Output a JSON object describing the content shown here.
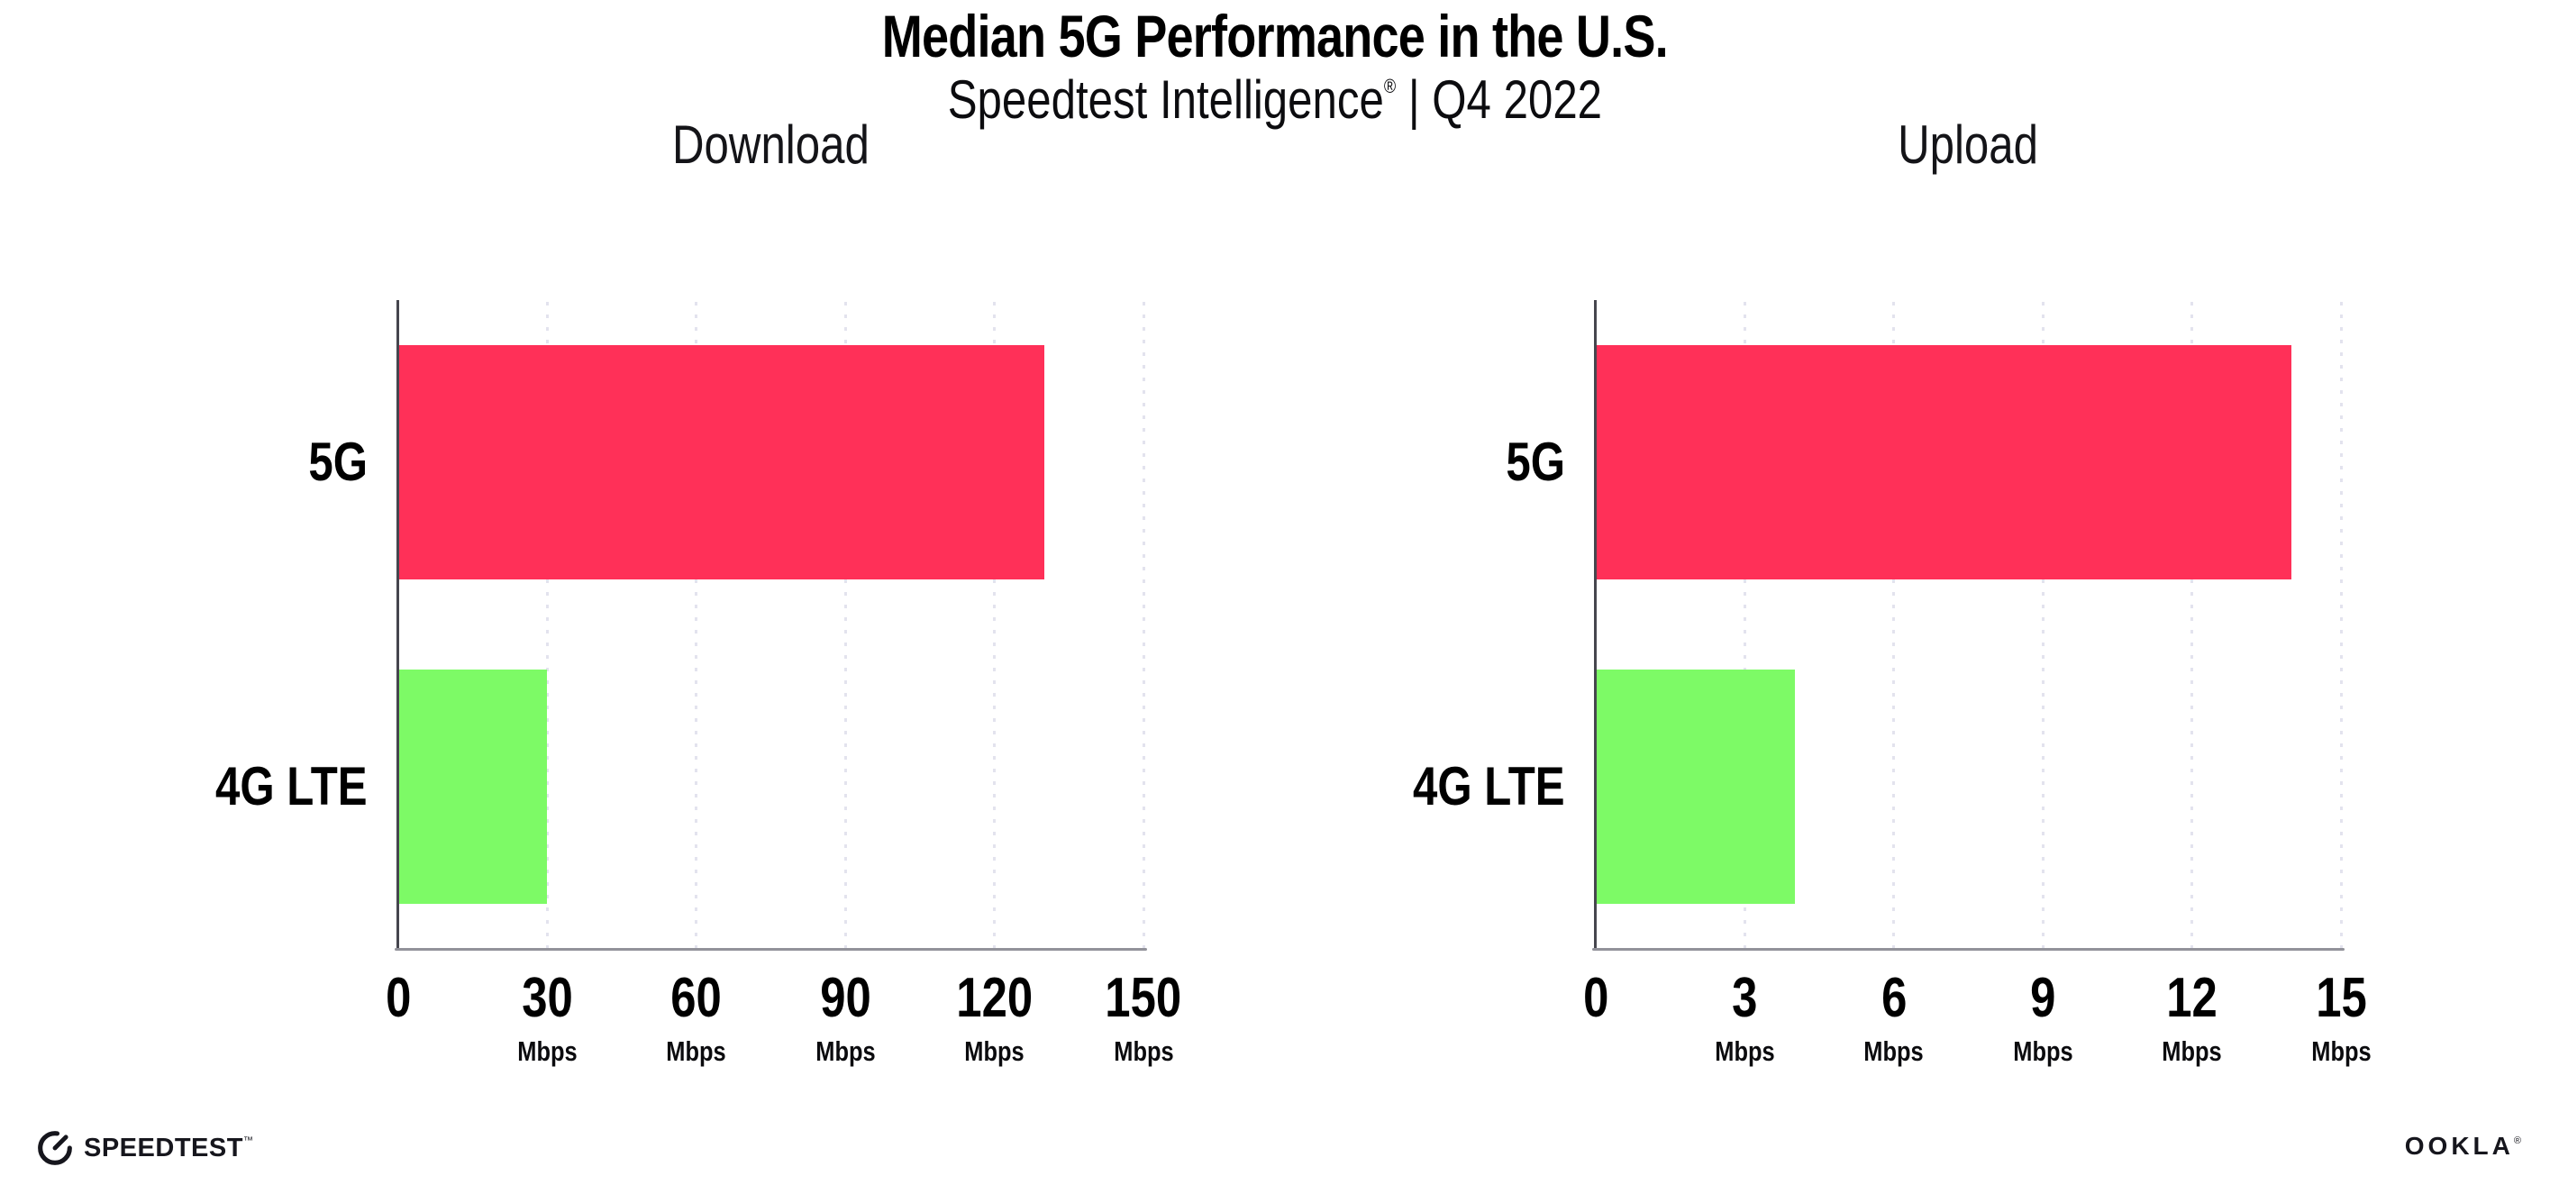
{
  "title": "Median 5G Performance in the U.S.",
  "subtitle": {
    "brand": "Speedtest Intelligence",
    "reg_mark": "®",
    "separator": " | ",
    "period": "Q4 2022"
  },
  "footer": {
    "speedtest_label": "SPEEDTEST",
    "speedtest_mark": "™",
    "ookla_label": "OOKLA",
    "ookla_mark": "®",
    "speedtest_icon": "speedometer-gauge-icon"
  },
  "colors": {
    "bar_5g": "#ff3058",
    "bar_4g_lte": "#7dfa66",
    "gridline": "#e3e3ee",
    "axis_vertical": "#46464e",
    "axis_horizontal": "#92929a",
    "text": "#000000"
  },
  "chart_data": [
    {
      "type": "bar",
      "orientation": "horizontal",
      "title": "Download",
      "categories": [
        "5G",
        "4G LTE"
      ],
      "values": [
        130,
        30
      ],
      "unit": "Mbps",
      "xlim": [
        0,
        150
      ],
      "xticks": [
        0,
        30,
        60,
        90,
        120,
        150
      ],
      "grid": "vertical-dotted",
      "legend": "none",
      "bar_colors": [
        "#ff3058",
        "#7dfa66"
      ]
    },
    {
      "type": "bar",
      "orientation": "horizontal",
      "title": "Upload",
      "categories": [
        "5G",
        "4G LTE"
      ],
      "values": [
        14,
        4
      ],
      "unit": "Mbps",
      "xlim": [
        0,
        15
      ],
      "xticks": [
        0,
        3,
        6,
        9,
        12,
        15
      ],
      "grid": "vertical-dotted",
      "legend": "none",
      "bar_colors": [
        "#ff3058",
        "#7dfa66"
      ]
    }
  ]
}
